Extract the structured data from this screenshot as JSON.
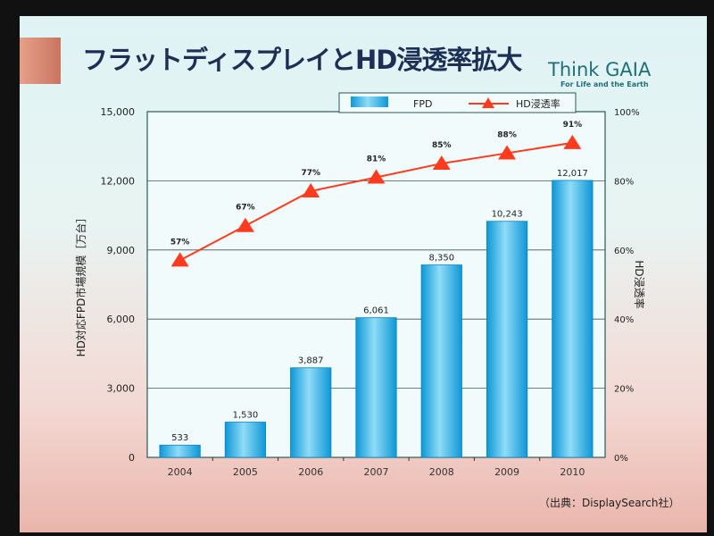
{
  "slide": {
    "title": "フラットディスプレイとHD浸透率拡大",
    "logo_main": "Think GAIA",
    "logo_sub": "For Life and the Earth",
    "source": "（出典：DisplaySearch社）"
  },
  "colors": {
    "bar": "#1fa9e0",
    "line": "#ff3b1f"
  },
  "chart_data": {
    "type": "bar+line",
    "categories": [
      "2004",
      "2005",
      "2006",
      "2007",
      "2008",
      "2009",
      "2010"
    ],
    "series": [
      {
        "name": "FPD",
        "type": "bar",
        "axis": "left",
        "values": [
          533,
          1530,
          3887,
          6061,
          8350,
          10243,
          12017
        ],
        "labels": [
          "533",
          "1,530",
          "3,887",
          "6,061",
          "8,350",
          "10,243",
          "12,017"
        ]
      },
      {
        "name": "HD浸透率",
        "type": "line",
        "axis": "right",
        "values": [
          57,
          67,
          77,
          81,
          85,
          88,
          91
        ],
        "labels": [
          "57%",
          "67%",
          "77%",
          "81%",
          "85%",
          "88%",
          "91%"
        ]
      }
    ],
    "ylabel": "HD対応FPD市場規模［万台］",
    "y2label": "HD浸透率",
    "ylim": [
      0,
      15000
    ],
    "yticks": [
      "0",
      "3,000",
      "6,000",
      "9,000",
      "12,000",
      "15,000"
    ],
    "y2lim": [
      0,
      100
    ],
    "y2ticks": [
      "0%",
      "20%",
      "40%",
      "60%",
      "80%",
      "100%"
    ],
    "grid": true,
    "legend": "top-right"
  }
}
